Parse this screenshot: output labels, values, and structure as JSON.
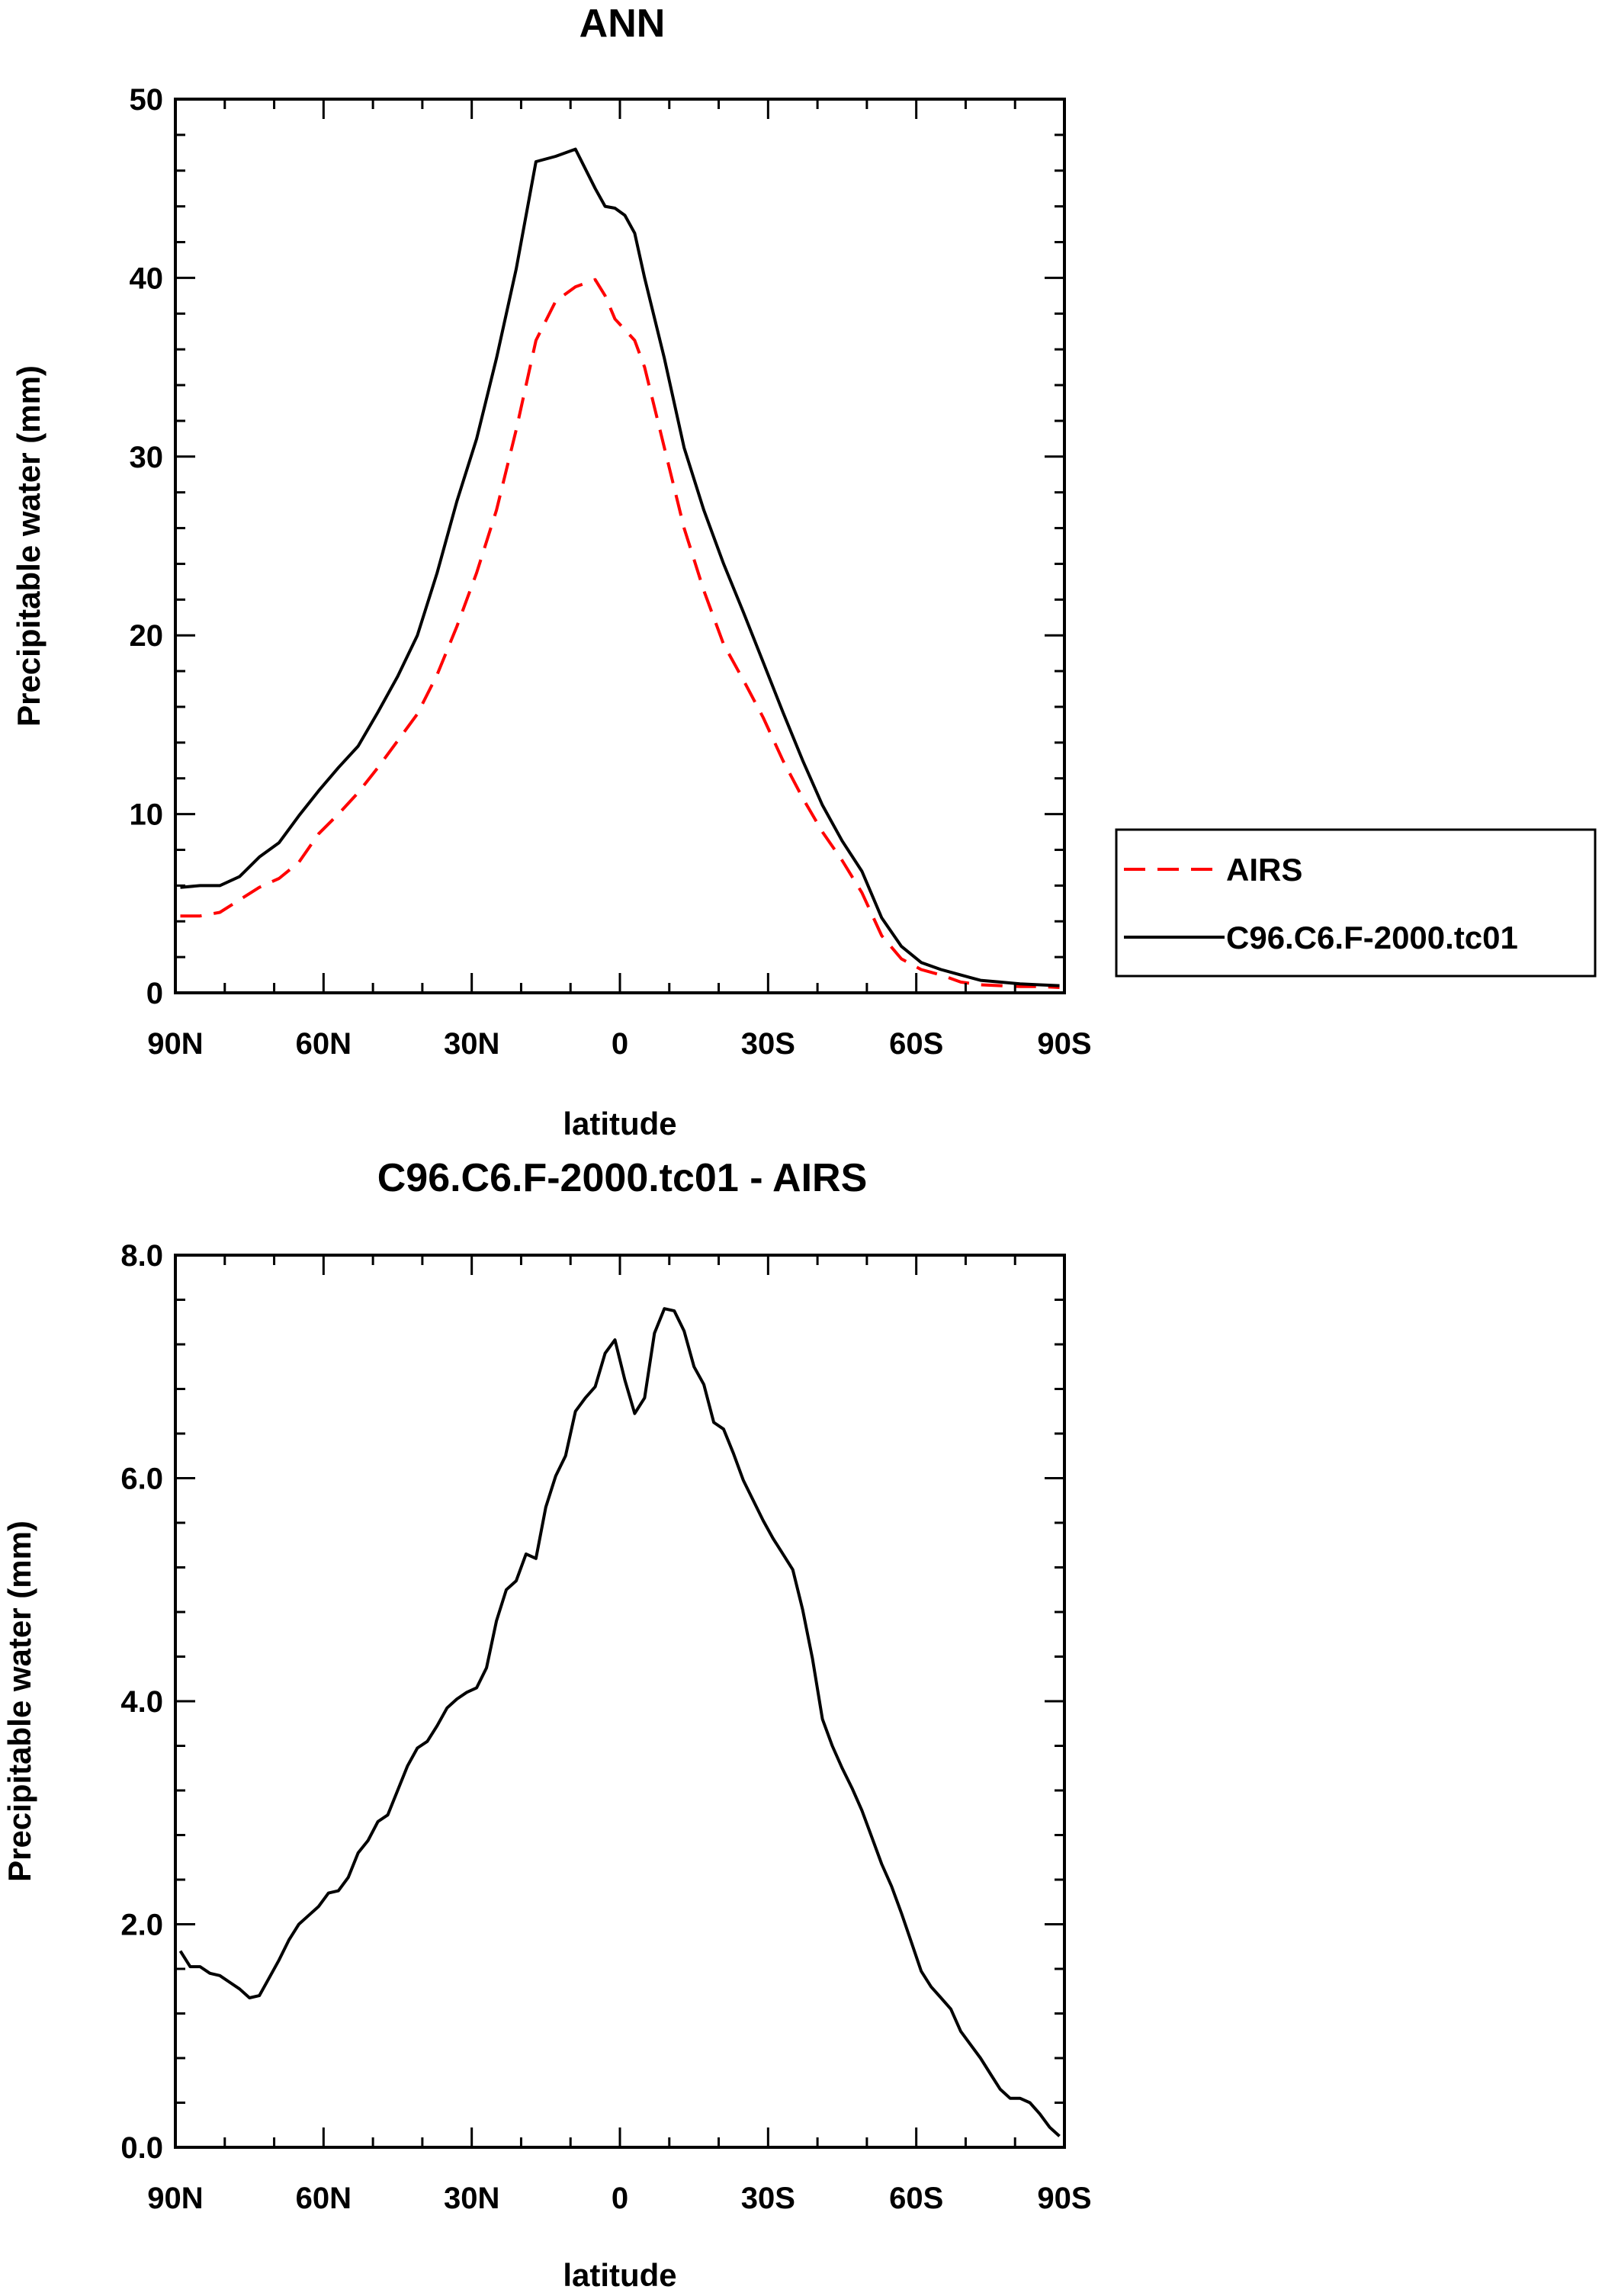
{
  "chart_data": [
    {
      "type": "line",
      "title": "ANN",
      "xlabel": "latitude",
      "ylabel": "Precipitable water (mm)",
      "xlim": [
        90,
        -90
      ],
      "ylim": [
        0,
        50
      ],
      "xticks": [
        90,
        60,
        30,
        0,
        -30,
        -60,
        -90
      ],
      "xtick_labels": [
        "90N",
        "60N",
        "30N",
        "0",
        "30S",
        "60S",
        "90S"
      ],
      "yticks": [
        0,
        10,
        20,
        30,
        40,
        50
      ],
      "ytick_labels": [
        "0",
        "10",
        "20",
        "30",
        "40",
        "50"
      ],
      "legend": {
        "position": "right",
        "entries": [
          "AIRS",
          "C96.C6.F-2000.tc01"
        ]
      },
      "x": [
        89,
        85,
        81,
        77,
        73,
        69,
        65,
        61,
        57,
        53,
        49,
        45,
        41,
        37,
        33,
        29,
        25,
        21,
        17,
        13,
        9,
        5,
        3,
        1,
        -1,
        -3,
        -5,
        -9,
        -13,
        -17,
        -21,
        -25,
        -29,
        -33,
        -37,
        -41,
        -45,
        -49,
        -53,
        -57,
        -61,
        -65,
        -69,
        -73,
        -77,
        -81,
        -85,
        -89
      ],
      "series": [
        {
          "name": "AIRS",
          "color": "#ff0000",
          "dash": "dashed",
          "values": [
            4.3,
            4.3,
            4.5,
            5.2,
            5.9,
            6.4,
            7.3,
            8.9,
            10.0,
            11.2,
            12.6,
            14.1,
            15.6,
            17.8,
            20.5,
            23.5,
            27.0,
            31.5,
            36.5,
            38.7,
            39.5,
            39.9,
            39.0,
            37.7,
            37.1,
            36.5,
            35.0,
            30.5,
            26.0,
            22.5,
            19.5,
            17.5,
            15.4,
            13.0,
            10.9,
            9.0,
            7.4,
            5.6,
            3.2,
            1.9,
            1.3,
            1.0,
            0.6,
            0.45,
            0.4,
            0.35,
            0.35,
            0.3
          ]
        },
        {
          "name": "C96.C6.F-2000.tc01",
          "color": "#000000",
          "dash": "solid",
          "values": [
            5.9,
            6.0,
            6.0,
            6.5,
            7.6,
            8.4,
            9.9,
            11.3,
            12.6,
            13.8,
            15.7,
            17.7,
            20.0,
            23.5,
            27.5,
            31.0,
            35.5,
            40.5,
            46.5,
            46.8,
            47.2,
            45.0,
            44.0,
            43.9,
            43.5,
            42.5,
            40.0,
            35.5,
            30.5,
            27.0,
            24.0,
            21.3,
            18.5,
            15.7,
            13.0,
            10.5,
            8.5,
            6.8,
            4.2,
            2.6,
            1.7,
            1.3,
            1.0,
            0.7,
            0.6,
            0.5,
            0.45,
            0.4
          ]
        }
      ]
    },
    {
      "type": "line",
      "title": "C96.C6.F-2000.tc01 - AIRS",
      "xlabel": "latitude",
      "ylabel": "Precipitable water (mm)",
      "xlim": [
        90,
        -90
      ],
      "ylim": [
        0,
        8
      ],
      "xticks": [
        90,
        60,
        30,
        0,
        -30,
        -60,
        -90
      ],
      "xtick_labels": [
        "90N",
        "60N",
        "30N",
        "0",
        "30S",
        "60S",
        "90S"
      ],
      "yticks": [
        0,
        2,
        4,
        6,
        8
      ],
      "ytick_labels": [
        "0.0",
        "2.0",
        "4.0",
        "6.0",
        "8.0"
      ],
      "x": [
        89,
        87,
        85,
        83,
        81,
        79,
        77,
        75,
        73,
        71,
        69,
        67,
        65,
        63,
        61,
        59,
        57,
        55,
        53,
        51,
        49,
        47,
        45,
        43,
        41,
        39,
        37,
        35,
        33,
        31,
        29,
        27,
        25,
        23,
        21,
        19,
        17,
        15,
        13,
        11,
        9,
        7,
        5,
        3,
        1,
        -1,
        -3,
        -5,
        -7,
        -9,
        -11,
        -13,
        -15,
        -17,
        -19,
        -21,
        -23,
        -25,
        -27,
        -29,
        -31,
        -33,
        -35,
        -37,
        -39,
        -41,
        -43,
        -45,
        -47,
        -49,
        -51,
        -53,
        -55,
        -57,
        -59,
        -61,
        -63,
        -65,
        -67,
        -69,
        -71,
        -73,
        -75,
        -77,
        -79,
        -81,
        -83,
        -85,
        -87,
        -89
      ],
      "series": [
        {
          "name": "C96.C6.F-2000.tc01 - AIRS",
          "color": "#000000",
          "dash": "solid",
          "values": [
            1.76,
            1.62,
            1.62,
            1.56,
            1.54,
            1.48,
            1.42,
            1.34,
            1.36,
            1.52,
            1.68,
            1.86,
            2.0,
            2.08,
            2.16,
            2.28,
            2.3,
            2.42,
            2.64,
            2.75,
            2.92,
            2.98,
            3.2,
            3.42,
            3.58,
            3.64,
            3.78,
            3.94,
            4.02,
            4.08,
            4.12,
            4.3,
            4.72,
            5.0,
            5.08,
            5.32,
            5.28,
            5.74,
            6.02,
            6.2,
            6.6,
            6.72,
            6.82,
            7.12,
            7.24,
            6.88,
            6.58,
            6.72,
            7.3,
            7.52,
            7.5,
            7.32,
            7.0,
            6.84,
            6.5,
            6.44,
            6.22,
            5.98,
            5.8,
            5.62,
            5.46,
            5.32,
            5.18,
            4.82,
            4.38,
            3.84,
            3.6,
            3.4,
            3.22,
            3.02,
            2.78,
            2.54,
            2.34,
            2.1,
            1.84,
            1.58,
            1.44,
            1.34,
            1.24,
            1.04,
            0.92,
            0.8,
            0.66,
            0.52,
            0.44,
            0.44,
            0.4,
            0.3,
            0.18,
            0.1
          ]
        }
      ]
    }
  ]
}
